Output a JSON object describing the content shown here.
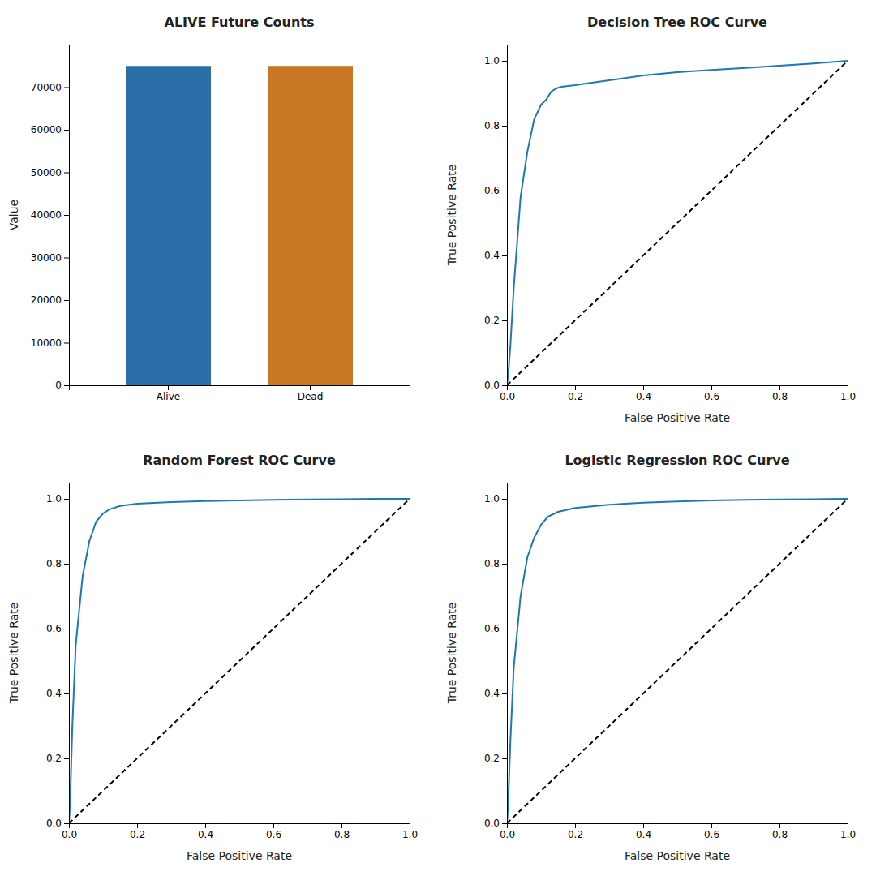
{
  "chart_data": [
    {
      "type": "bar",
      "title": "ALIVE Future Counts",
      "y_label": "Value",
      "categories": [
        "Alive",
        "Dead"
      ],
      "values": [
        75000,
        75000
      ],
      "colors": [
        "#2c6fa8",
        "#c87820"
      ],
      "ylim": [
        0,
        80000
      ],
      "yticks": [
        0,
        10000,
        20000,
        30000,
        40000,
        50000,
        60000,
        70000
      ],
      "grid": false
    },
    {
      "type": "line",
      "title": "Decision Tree ROC Curve",
      "x_label": "False Positive Rate",
      "y_label": "True Positive Rate",
      "series": [
        {
          "color": "#1f77b4",
          "line_style": "solid",
          "x": [
            0.0,
            0.002,
            0.005,
            0.01,
            0.02,
            0.04,
            0.06,
            0.08,
            0.1,
            0.115,
            0.13,
            0.145,
            0.16,
            0.2,
            0.3,
            0.4,
            0.5,
            0.6,
            0.7,
            0.8,
            0.9,
            1.0
          ],
          "values": [
            0.0,
            0.02,
            0.05,
            0.12,
            0.3,
            0.58,
            0.72,
            0.82,
            0.865,
            0.88,
            0.905,
            0.915,
            0.92,
            0.925,
            0.94,
            0.955,
            0.965,
            0.972,
            0.978,
            0.985,
            0.992,
            1.0
          ]
        },
        {
          "color": "black",
          "line_style": "dashed",
          "x": [
            0,
            1
          ],
          "values": [
            0,
            1
          ]
        }
      ],
      "xlim": [
        0.0,
        1.0
      ],
      "xticks": [
        {
          "value": 0.0,
          "label": "0.0"
        },
        0.2,
        0.4,
        0.6,
        0.8,
        {
          "value": 1.0,
          "label": "1.0"
        }
      ],
      "ylim": [
        0.0,
        1.05
      ],
      "yticks": [
        {
          "value": 0.0,
          "label": "0.0"
        },
        0.2,
        0.4,
        0.6,
        0.8,
        {
          "value": 1.0,
          "label": "1.0"
        }
      ],
      "grid": false
    },
    {
      "type": "line",
      "title": "Random Forest ROC Curve",
      "x_label": "False Positive Rate",
      "y_label": "True Positive Rate",
      "series": [
        {
          "color": "#1f77b4",
          "line_style": "solid",
          "x": [
            0.0,
            0.002,
            0.005,
            0.01,
            0.02,
            0.04,
            0.06,
            0.08,
            0.1,
            0.12,
            0.15,
            0.2,
            0.3,
            0.4,
            0.5,
            0.6,
            0.7,
            0.8,
            0.9,
            1.0
          ],
          "values": [
            0.0,
            0.04,
            0.12,
            0.3,
            0.55,
            0.76,
            0.87,
            0.93,
            0.955,
            0.968,
            0.978,
            0.985,
            0.99,
            0.993,
            0.995,
            0.997,
            0.998,
            0.999,
            1.0,
            1.0
          ]
        },
        {
          "color": "black",
          "line_style": "dashed",
          "x": [
            0,
            1
          ],
          "values": [
            0,
            1
          ]
        }
      ],
      "xlim": [
        0.0,
        1.0
      ],
      "xticks": [
        {
          "value": 0.0,
          "label": "0.0"
        },
        0.2,
        0.4,
        0.6,
        0.8,
        {
          "value": 1.0,
          "label": "1.0"
        }
      ],
      "ylim": [
        0.0,
        1.05
      ],
      "yticks": [
        {
          "value": 0.0,
          "label": "0.0"
        },
        0.2,
        0.4,
        0.6,
        0.8,
        {
          "value": 1.0,
          "label": "1.0"
        }
      ],
      "grid": false
    },
    {
      "type": "line",
      "title": "Logistic Regression ROC Curve",
      "x_label": "False Positive Rate",
      "y_label": "True Positive Rate",
      "series": [
        {
          "color": "#1f77b4",
          "line_style": "solid",
          "x": [
            0.0,
            0.002,
            0.005,
            0.01,
            0.02,
            0.04,
            0.06,
            0.08,
            0.1,
            0.12,
            0.15,
            0.2,
            0.3,
            0.4,
            0.5,
            0.6,
            0.7,
            0.8,
            0.9,
            1.0
          ],
          "values": [
            0.0,
            0.03,
            0.1,
            0.25,
            0.48,
            0.7,
            0.82,
            0.88,
            0.92,
            0.945,
            0.96,
            0.972,
            0.982,
            0.988,
            0.992,
            0.995,
            0.997,
            0.998,
            0.999,
            1.0
          ]
        },
        {
          "color": "black",
          "line_style": "dashed",
          "x": [
            0,
            1
          ],
          "values": [
            0,
            1
          ]
        }
      ],
      "xlim": [
        0.0,
        1.0
      ],
      "xticks": [
        {
          "value": 0.0,
          "label": "0.0"
        },
        0.2,
        0.4,
        0.6,
        0.8,
        {
          "value": 1.0,
          "label": "1.0"
        }
      ],
      "ylim": [
        0.0,
        1.05
      ],
      "yticks": [
        {
          "value": 0.0,
          "label": "0.0"
        },
        0.2,
        0.4,
        0.6,
        0.8,
        {
          "value": 1.0,
          "label": "1.0"
        }
      ],
      "grid": false
    }
  ]
}
